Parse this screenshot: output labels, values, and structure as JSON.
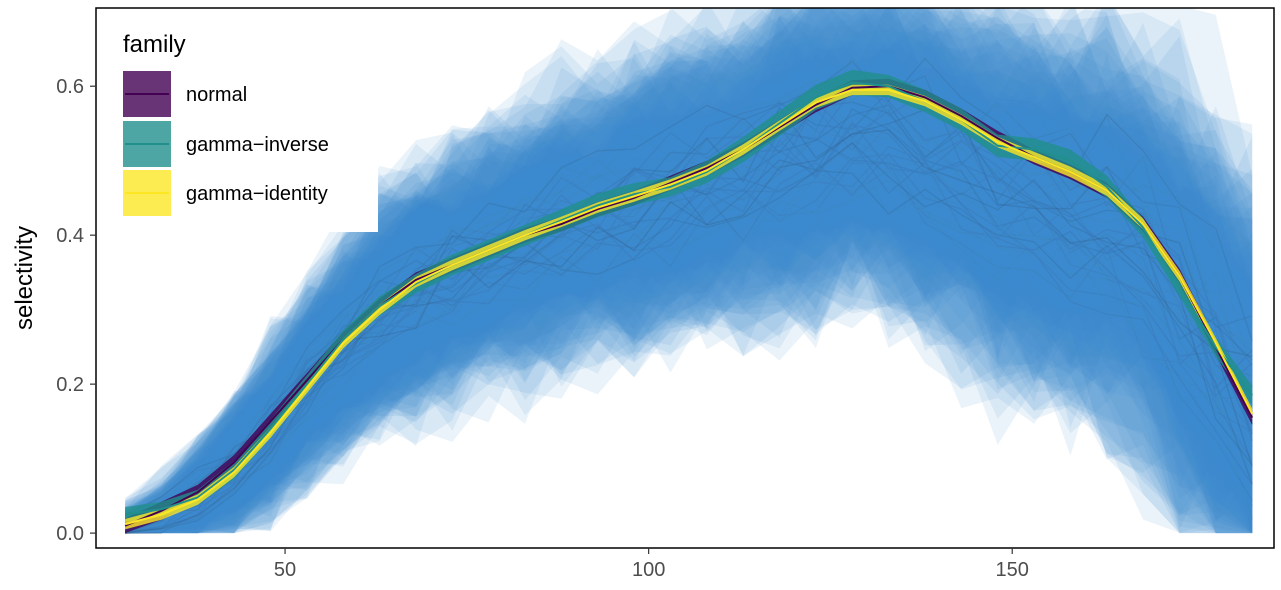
{
  "chart_data": {
    "type": "line",
    "ylabel": "selectivity",
    "xlabel": "",
    "xlim": [
      24.0,
      186.0
    ],
    "ylim": [
      -0.02,
      0.705
    ],
    "x_ticks": [
      50,
      100,
      150
    ],
    "y_ticks": [
      0.0,
      0.2,
      0.4,
      0.6
    ],
    "x_tick_labels": [
      "50",
      "100",
      "150"
    ],
    "y_tick_labels": [
      "0.0",
      "0.2",
      "0.4",
      "0.6"
    ],
    "grid": false,
    "legend": {
      "title": "family",
      "position": "top-left"
    },
    "x": [
      28,
      33,
      38,
      43,
      48,
      53,
      58,
      63,
      68,
      73,
      78,
      83,
      88,
      93,
      98,
      103,
      108,
      113,
      118,
      123,
      128,
      133,
      138,
      143,
      148,
      153,
      158,
      163,
      168,
      173,
      178,
      183
    ],
    "series": [
      {
        "name": "normal",
        "color": "#440154",
        "values": [
          0.01,
          0.03,
          0.055,
          0.095,
          0.15,
          0.205,
          0.26,
          0.305,
          0.34,
          0.36,
          0.38,
          0.4,
          0.415,
          0.435,
          0.45,
          0.47,
          0.49,
          0.515,
          0.545,
          0.575,
          0.598,
          0.6,
          0.585,
          0.56,
          0.53,
          0.505,
          0.485,
          0.46,
          0.415,
          0.345,
          0.25,
          0.155
        ],
        "band_lower": [
          0.0,
          0.018,
          0.045,
          0.085,
          0.14,
          0.195,
          0.25,
          0.295,
          0.33,
          0.35,
          0.37,
          0.39,
          0.405,
          0.425,
          0.44,
          0.46,
          0.48,
          0.505,
          0.535,
          0.565,
          0.588,
          0.59,
          0.575,
          0.55,
          0.52,
          0.495,
          0.475,
          0.45,
          0.405,
          0.335,
          0.24,
          0.145
        ],
        "band_upper": [
          0.02,
          0.042,
          0.065,
          0.105,
          0.16,
          0.215,
          0.27,
          0.315,
          0.35,
          0.37,
          0.39,
          0.41,
          0.425,
          0.445,
          0.46,
          0.48,
          0.5,
          0.525,
          0.555,
          0.585,
          0.608,
          0.61,
          0.595,
          0.57,
          0.54,
          0.515,
          0.495,
          0.47,
          0.425,
          0.355,
          0.26,
          0.165
        ]
      },
      {
        "name": "gamma−inverse",
        "color": "#21908C",
        "values": [
          0.025,
          0.032,
          0.048,
          0.085,
          0.14,
          0.2,
          0.26,
          0.305,
          0.335,
          0.36,
          0.38,
          0.4,
          0.42,
          0.44,
          0.455,
          0.465,
          0.485,
          0.515,
          0.55,
          0.585,
          0.605,
          0.6,
          0.58,
          0.555,
          0.52,
          0.515,
          0.5,
          0.465,
          0.41,
          0.33,
          0.25,
          0.185
        ],
        "band_lower": [
          0.015,
          0.022,
          0.038,
          0.073,
          0.128,
          0.188,
          0.248,
          0.292,
          0.322,
          0.346,
          0.366,
          0.386,
          0.405,
          0.424,
          0.44,
          0.452,
          0.47,
          0.498,
          0.533,
          0.568,
          0.588,
          0.585,
          0.565,
          0.54,
          0.505,
          0.5,
          0.485,
          0.45,
          0.397,
          0.318,
          0.237,
          0.172
        ],
        "band_upper": [
          0.035,
          0.042,
          0.058,
          0.097,
          0.152,
          0.212,
          0.272,
          0.318,
          0.348,
          0.374,
          0.394,
          0.414,
          0.435,
          0.456,
          0.47,
          0.478,
          0.5,
          0.532,
          0.567,
          0.602,
          0.622,
          0.615,
          0.595,
          0.57,
          0.535,
          0.53,
          0.515,
          0.48,
          0.423,
          0.342,
          0.263,
          0.198
        ]
      },
      {
        "name": "gamma−identity",
        "color": "#FDE725",
        "values": [
          0.012,
          0.025,
          0.045,
          0.082,
          0.135,
          0.195,
          0.255,
          0.3,
          0.337,
          0.36,
          0.38,
          0.4,
          0.418,
          0.437,
          0.452,
          0.468,
          0.487,
          0.515,
          0.547,
          0.578,
          0.595,
          0.595,
          0.58,
          0.555,
          0.525,
          0.505,
          0.485,
          0.46,
          0.415,
          0.345,
          0.255,
          0.16
        ],
        "band_lower": [
          0.005,
          0.018,
          0.038,
          0.075,
          0.128,
          0.188,
          0.248,
          0.293,
          0.33,
          0.353,
          0.373,
          0.393,
          0.411,
          0.43,
          0.445,
          0.461,
          0.48,
          0.508,
          0.54,
          0.571,
          0.588,
          0.588,
          0.573,
          0.548,
          0.518,
          0.498,
          0.478,
          0.453,
          0.408,
          0.338,
          0.248,
          0.153
        ],
        "band_upper": [
          0.019,
          0.032,
          0.052,
          0.089,
          0.142,
          0.202,
          0.262,
          0.307,
          0.344,
          0.367,
          0.387,
          0.407,
          0.425,
          0.444,
          0.459,
          0.475,
          0.494,
          0.522,
          0.554,
          0.585,
          0.602,
          0.602,
          0.587,
          0.562,
          0.532,
          0.512,
          0.492,
          0.467,
          0.422,
          0.352,
          0.262,
          0.167
        ]
      }
    ],
    "background_ensemble": {
      "count": 40,
      "band_color": "#3A8ACB",
      "line_color": "#2F4F6F",
      "mean": [
        0.01,
        0.025,
        0.05,
        0.09,
        0.14,
        0.2,
        0.25,
        0.295,
        0.33,
        0.355,
        0.375,
        0.395,
        0.415,
        0.43,
        0.445,
        0.46,
        0.475,
        0.49,
        0.51,
        0.53,
        0.54,
        0.535,
        0.515,
        0.49,
        0.465,
        0.45,
        0.44,
        0.42,
        0.38,
        0.32,
        0.25,
        0.18
      ],
      "spread": [
        0.02,
        0.04,
        0.07,
        0.09,
        0.11,
        0.12,
        0.13,
        0.14,
        0.15,
        0.15,
        0.15,
        0.16,
        0.16,
        0.16,
        0.17,
        0.17,
        0.17,
        0.18,
        0.18,
        0.19,
        0.19,
        0.19,
        0.2,
        0.2,
        0.21,
        0.22,
        0.23,
        0.24,
        0.25,
        0.26,
        0.27,
        0.28
      ]
    }
  }
}
